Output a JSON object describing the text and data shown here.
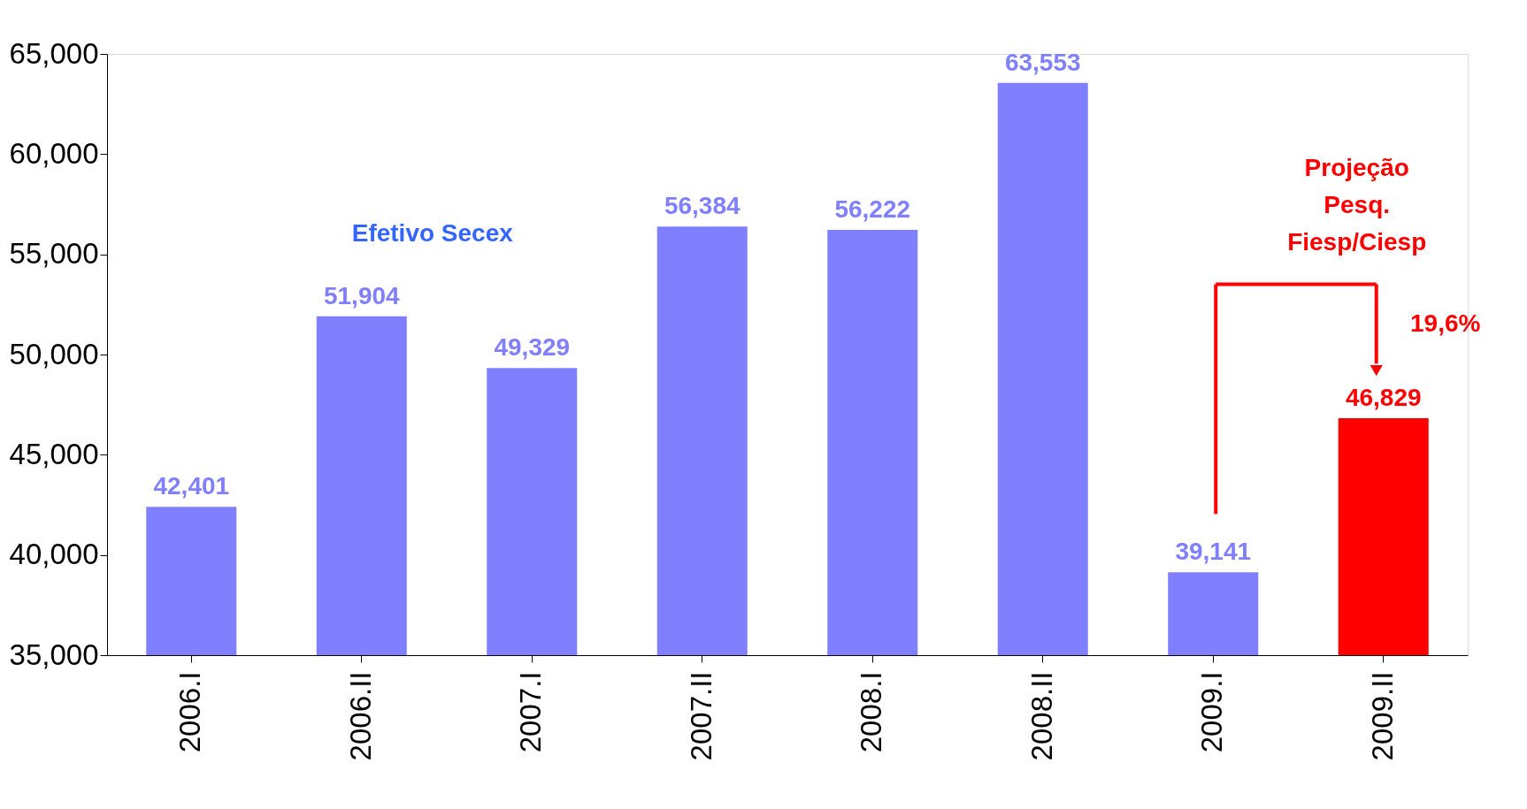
{
  "chart_data": {
    "type": "bar",
    "categories": [
      "2006.I",
      "2006.II",
      "2007.I",
      "2007.II",
      "2008.I",
      "2008.II",
      "2009.I",
      "2009.II"
    ],
    "values": [
      42401,
      51904,
      49329,
      56384,
      56222,
      63553,
      39141,
      46829
    ],
    "colors": [
      "#8080ff",
      "#8080ff",
      "#8080ff",
      "#8080ff",
      "#8080ff",
      "#8080ff",
      "#8080ff",
      "#ff0000"
    ],
    "value_labels": [
      "42,401",
      "51,904",
      "49,329",
      "56,384",
      "56,222",
      "63,553",
      "39,141",
      "46,829"
    ],
    "ylim": [
      35000,
      65000
    ],
    "yticks": [
      {
        "value": 35000,
        "label": "35,000"
      },
      {
        "value": 40000,
        "label": "40,000"
      },
      {
        "value": 45000,
        "label": "45,000"
      },
      {
        "value": 50000,
        "label": "50,000"
      },
      {
        "value": 55000,
        "label": "55,000"
      },
      {
        "value": 60000,
        "label": "60,000"
      },
      {
        "value": 65000,
        "label": "65,000"
      }
    ],
    "annotations": [
      "Efetivo Secex",
      "Projeção Pesq. Fiesp/Ciesp",
      "19,6%"
    ]
  }
}
